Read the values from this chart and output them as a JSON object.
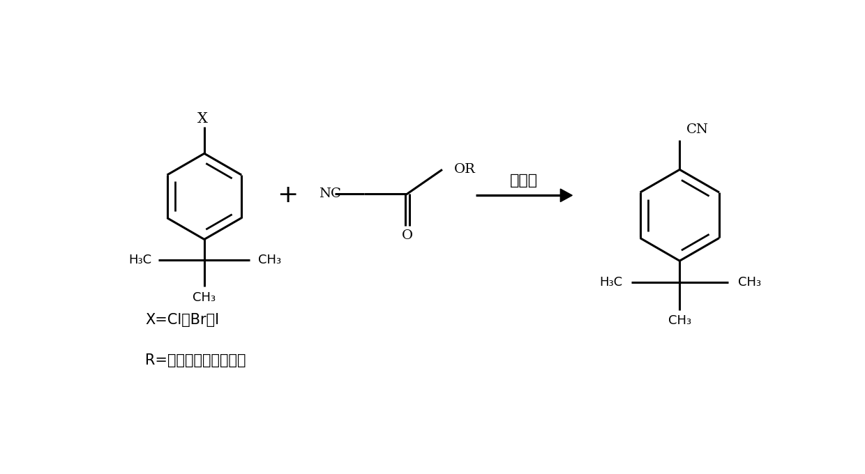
{
  "bg_color": "#ffffff",
  "line_color": "#000000",
  "line_width": 2.2,
  "figsize": [
    12.4,
    6.8
  ],
  "dpi": 100,
  "arrow_label": "有机碱",
  "annotation_x": "X=Cl，Br或I",
  "annotation_r": "R=氢原子，甲基或乙基"
}
